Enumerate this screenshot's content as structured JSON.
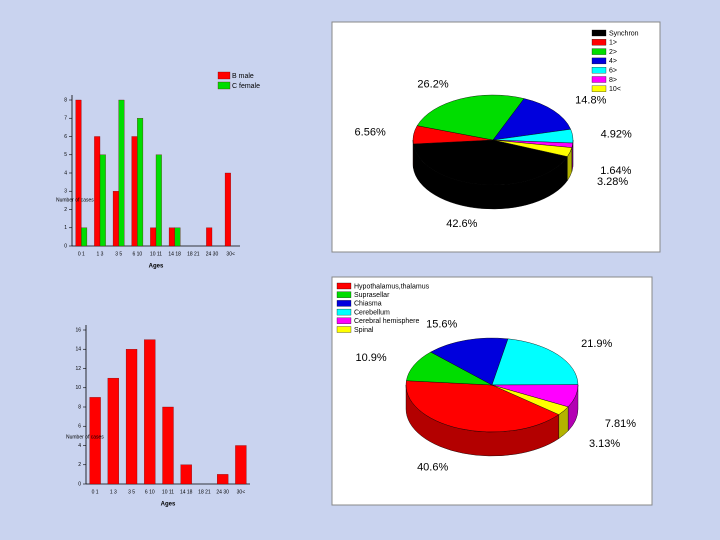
{
  "chart_data": [
    {
      "type": "bar",
      "x_label": "Ages",
      "y_label": "Number of cases",
      "categories": [
        "0 1",
        "1 3",
        "3 5",
        "6 10",
        "10 11",
        "14 18",
        "18 21",
        "24 30",
        "30<"
      ],
      "series": [
        {
          "name": "B male",
          "color": "#ff0000",
          "values": [
            8,
            6,
            3,
            6,
            1,
            1,
            0,
            1,
            4
          ]
        },
        {
          "name": "C female",
          "color": "#00dd00",
          "values": [
            1,
            5,
            8,
            7,
            5,
            1,
            0,
            0,
            0
          ]
        }
      ],
      "ylim": [
        0,
        8
      ],
      "yticks": [
        0,
        1,
        2,
        3,
        4,
        5,
        6,
        7,
        8
      ],
      "legend": "top-right"
    },
    {
      "type": "pie",
      "categories": [
        "Synchron",
        "1>",
        "2>",
        "4>",
        "6>",
        "8>",
        "10<"
      ],
      "values": [
        42.6,
        6.56,
        26.2,
        14.8,
        4.92,
        1.64,
        3.28
      ],
      "value_labels": [
        "42.6%",
        "6.56%",
        "26.2%",
        "14.8%",
        "4.92%",
        "1.64%",
        "3.28%"
      ],
      "colors": [
        "#000000",
        "#ff0000",
        "#00dd00",
        "#0000dd",
        "#00ffff",
        "#ff00ff",
        "#ffff00"
      ],
      "legend": "top-right"
    },
    {
      "type": "bar",
      "x_label": "Ages",
      "y_label": "Number of cases",
      "categories": [
        "0 1",
        "1 3",
        "3 5",
        "6 10",
        "10 11",
        "14 18",
        "18 21",
        "24 30",
        "30<"
      ],
      "series": [
        {
          "color": "#ff0000",
          "values": [
            9,
            11,
            14,
            15,
            8,
            2,
            0,
            1,
            4
          ]
        }
      ],
      "ylim": [
        0,
        16
      ],
      "yticks": [
        0,
        2,
        4,
        6,
        8,
        10,
        12,
        14,
        16
      ]
    },
    {
      "type": "pie",
      "categories": [
        "Hypothalamus,thalamus",
        "Suprasellar",
        "Chiasma",
        "Cerebellum",
        "Cerebral hemisphere",
        "Spinal"
      ],
      "values": [
        40.6,
        10.9,
        15.6,
        21.9,
        7.81,
        3.13
      ],
      "value_labels": [
        "40.6%",
        "10.9%",
        "15.6%",
        "21.9%",
        "7.81%",
        "3.13%"
      ],
      "colors": [
        "#ff0000",
        "#00dd00",
        "#0000dd",
        "#00ffff",
        "#ff00ff",
        "#ffff00"
      ],
      "legend": "top-left"
    }
  ]
}
